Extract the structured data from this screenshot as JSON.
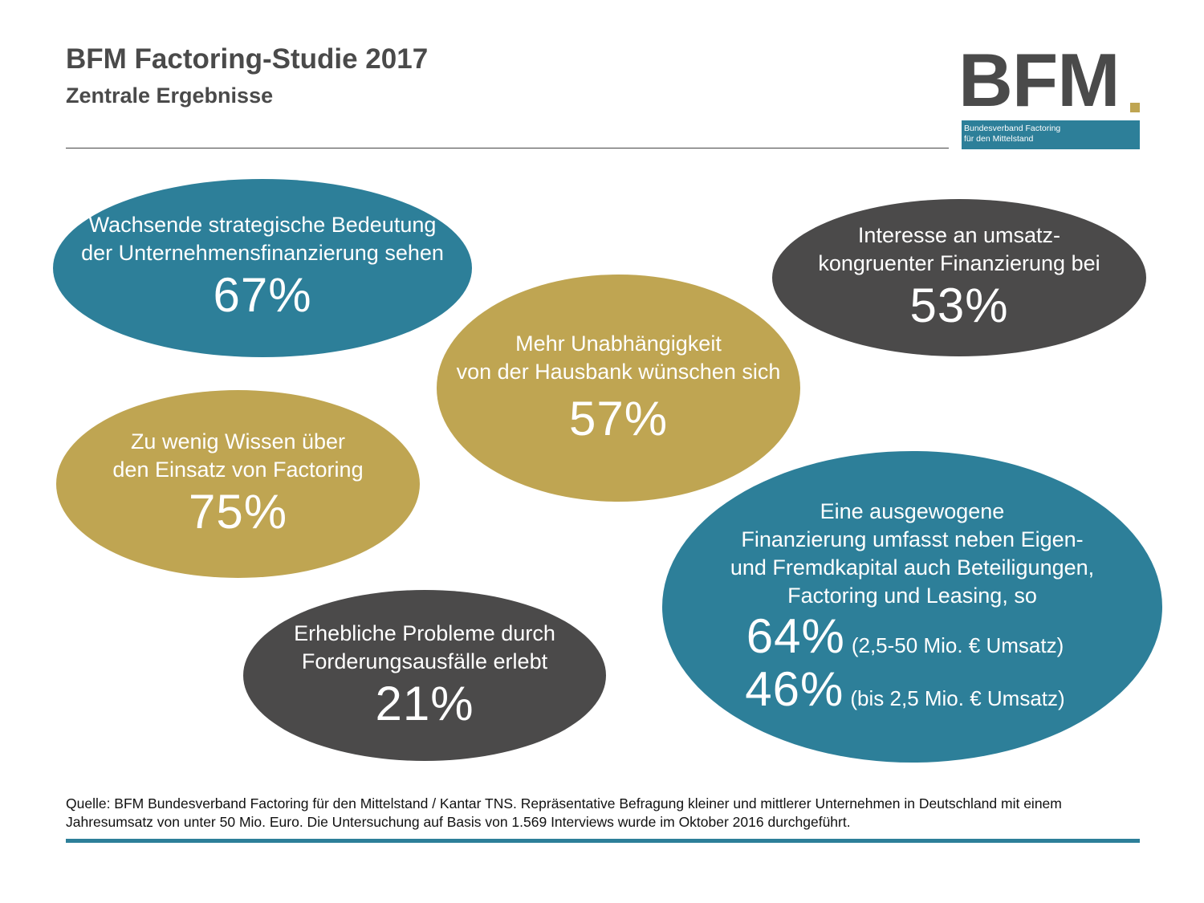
{
  "header": {
    "title": "BFM Factoring-Studie 2017",
    "subtitle": "Zentrale Ergebnisse"
  },
  "logo": {
    "letters": "BFM",
    "line1": "Bundesverband Factoring",
    "line2": "für den Mittelstand",
    "colors": {
      "teal": "#2d7f99",
      "gold": "#bfa552",
      "gray": "#4a4a4a"
    }
  },
  "findings": [
    {
      "text": "Wachsende strategische Bedeutung\nder Unternehmensfinanzierung sehen",
      "value": "67%",
      "color": "#2d7f99"
    },
    {
      "text": "Interesse an umsatz-\nkongruenter Finanzierung bei",
      "value": "53%",
      "color": "#4b4a4a"
    },
    {
      "text": "Mehr Unabhängigkeit\nvon der Hausbank wünschen sich",
      "value": "57%",
      "color": "#bfa552"
    },
    {
      "text": "Zu wenig Wissen über\nden Einsatz von Factoring",
      "value": "75%",
      "color": "#bfa552"
    },
    {
      "text": "Erhebliche Probleme durch\nForderungsausfälle erlebt",
      "value": "21%",
      "color": "#4b4a4a"
    },
    {
      "text": "Eine ausgewogene\nFinanzierung umfasst neben Eigen-\nund Fremdkapital auch Beteiligungen,\nFactoring und Leasing, so",
      "color": "#2d7f99",
      "values": [
        {
          "value": "64%",
          "note": "(2,5-50 Mio. € Umsatz)"
        },
        {
          "value": "46%",
          "note": "(bis 2,5 Mio. € Umsatz)"
        }
      ]
    }
  ],
  "footer": {
    "source": "Quelle: BFM Bundesverband Factoring für den Mittelstand / Kantar TNS. Repräsentative Befragung kleiner und mittlerer Unternehmen in Deutschland mit einem Jahresumsatz von unter 50 Mio. Euro. Die Untersuchung auf Basis von 1.569 Interviews wurde im Oktober 2016 durchgeführt."
  }
}
